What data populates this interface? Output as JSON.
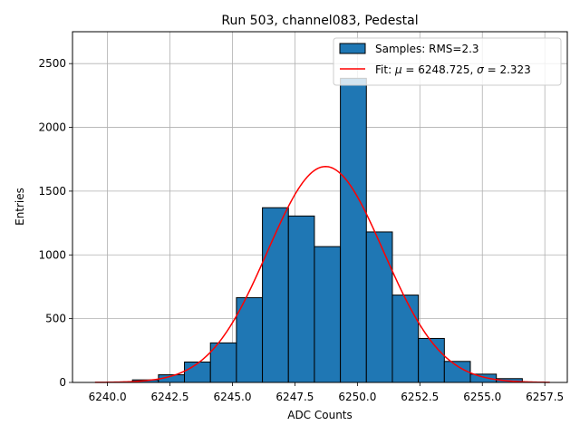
{
  "chart_data": {
    "type": "bar",
    "title": "Run 503, channel083, Pedestal",
    "xlabel": "ADC Counts",
    "ylabel": "Entries",
    "xlim": [
      6238.6,
      6258.4
    ],
    "ylim": [
      0,
      2750
    ],
    "grid": true,
    "legend_position": "top-right",
    "x_ticks": [
      6240.0,
      6242.5,
      6245.0,
      6247.5,
      6250.0,
      6252.5,
      6255.0,
      6257.5
    ],
    "x_tick_labels": [
      "6240.0",
      "6242.5",
      "6245.0",
      "6247.5",
      "6250.0",
      "6252.5",
      "6255.0",
      "6257.5"
    ],
    "y_ticks": [
      0,
      500,
      1000,
      1500,
      2000,
      2500
    ],
    "y_tick_labels": [
      "0",
      "500",
      "1000",
      "1500",
      "2000",
      "2500"
    ],
    "histogram": {
      "name": "Samples: RMS=2.3",
      "color": "#1f77b4",
      "edge_color": "#000000",
      "bin_edges": [
        6241.0,
        6242.04,
        6243.08,
        6244.12,
        6245.16,
        6246.2,
        6247.24,
        6248.28,
        6249.32,
        6250.36,
        6251.4,
        6252.44,
        6253.48,
        6254.52,
        6255.56
      ],
      "bin_width": 1.04,
      "values": [
        20,
        60,
        160,
        310,
        665,
        1370,
        1305,
        1065,
        2385,
        1180,
        685,
        345,
        165,
        65,
        30
      ]
    },
    "fit": {
      "name": "Fit: μ = 6248.725, σ = 2.323",
      "label_prefix": "Fit: ",
      "mu_symbol": "μ",
      "mu_text": " = 6248.725, ",
      "sigma_symbol": "σ",
      "sigma_text": " = 2.323",
      "color": "#ff0000",
      "mu": 6248.725,
      "sigma": 2.323,
      "amplitude": 1693,
      "x_range": [
        6239.5,
        6257.7
      ]
    }
  }
}
